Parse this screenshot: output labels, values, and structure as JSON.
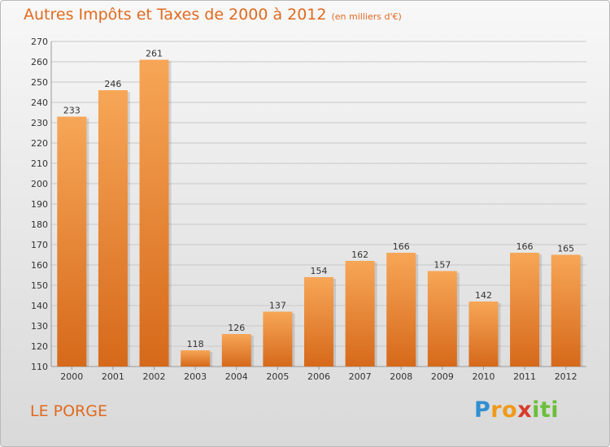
{
  "title": "Autres Impôts et Taxes de 2000 à 2012",
  "subtitle": "(en milliers d'€)",
  "commune": "LE PORGE",
  "logo": {
    "text": "Proxiti",
    "letters": [
      {
        "char": "P",
        "color": "#2f8fd0"
      },
      {
        "char": "r",
        "color": "#f09a1a"
      },
      {
        "char": "o",
        "color": "#f09a1a"
      },
      {
        "char": "x",
        "color": "#d93b2b"
      },
      {
        "char": "i",
        "color": "#6bbf3a"
      },
      {
        "char": "t",
        "color": "#6bbf3a"
      },
      {
        "char": "i",
        "color": "#6bbf3a"
      }
    ]
  },
  "colors": {
    "accent": "#e06a1f",
    "bar_top": "#f7a657",
    "bar_bottom": "#d6691a",
    "grid": "#c8c8c8"
  },
  "chart_data": {
    "type": "bar",
    "categories": [
      "2000",
      "2001",
      "2002",
      "2003",
      "2004",
      "2005",
      "2006",
      "2007",
      "2008",
      "2009",
      "2010",
      "2011",
      "2012"
    ],
    "values": [
      233,
      246,
      261,
      118,
      126,
      137,
      154,
      162,
      166,
      157,
      142,
      166,
      165
    ],
    "ylim": [
      110,
      270
    ],
    "yticks": [
      110,
      120,
      130,
      140,
      150,
      160,
      170,
      180,
      190,
      200,
      210,
      220,
      230,
      240,
      250,
      260,
      270
    ],
    "grid": true,
    "data_labels": true
  }
}
